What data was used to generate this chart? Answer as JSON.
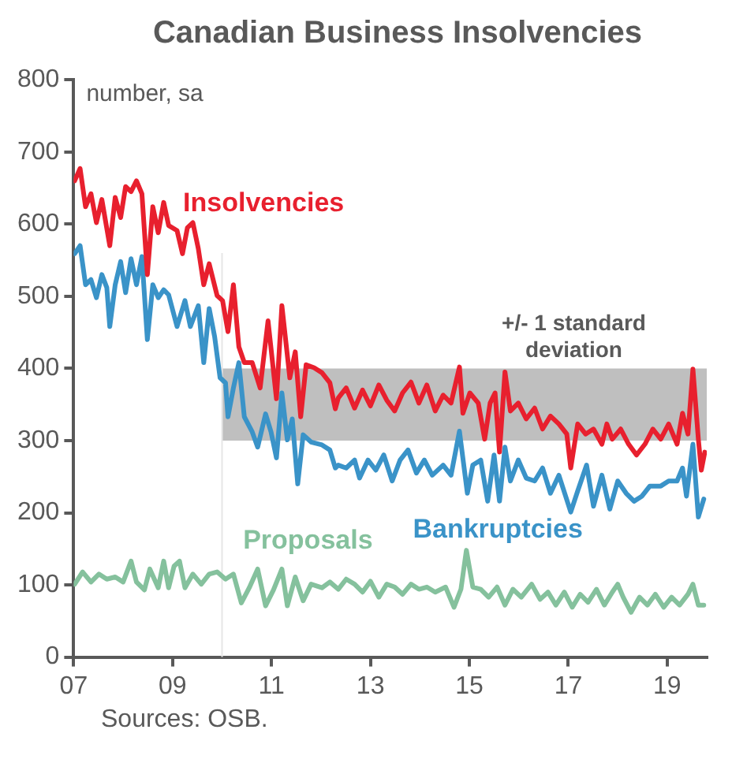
{
  "chart_data": {
    "type": "line",
    "title": "Canadian Business Insolvencies",
    "ylabel": "number, sa",
    "xlim": [
      2007,
      2019.8
    ],
    "xticks": [
      {
        "value": 2007,
        "label": "07"
      },
      {
        "value": 2009,
        "label": "09"
      },
      {
        "value": 2011,
        "label": "11"
      },
      {
        "value": 2013,
        "label": "13"
      },
      {
        "value": 2015,
        "label": "15"
      },
      {
        "value": 2017,
        "label": "17"
      },
      {
        "value": 2019,
        "label": "19"
      }
    ],
    "ylim": [
      0,
      800
    ],
    "yticks": [
      0,
      100,
      200,
      300,
      400,
      500,
      600,
      700,
      800
    ],
    "grid": false,
    "legend": false,
    "bands": [
      {
        "axis": "y",
        "from": 300,
        "to": 400,
        "label": "+/- 1 standard deviation",
        "color": "#bfbfbf"
      }
    ],
    "ref_lines": [
      {
        "axis": "x",
        "value": 2010,
        "color": "#e6e6e6"
      }
    ],
    "annotations": [
      "Sources: OSB."
    ],
    "series": [
      {
        "name": "Insolvencies",
        "color": "#e8202e",
        "x": [
          2007.02,
          2007.13,
          2007.24,
          2007.35,
          2007.46,
          2007.57,
          2007.73,
          2007.84,
          2007.95,
          2008.05,
          2008.16,
          2008.27,
          2008.38,
          2008.49,
          2008.6,
          2008.71,
          2008.82,
          2008.92,
          2009.09,
          2009.2,
          2009.3,
          2009.41,
          2009.52,
          2009.63,
          2009.74,
          2009.9,
          2010.01,
          2010.12,
          2010.23,
          2010.34,
          2010.45,
          2010.61,
          2010.77,
          2010.93,
          2011.1,
          2011.21,
          2011.37,
          2011.48,
          2011.59,
          2011.7,
          2011.86,
          2012.02,
          2012.18,
          2012.29,
          2012.35,
          2012.51,
          2012.68,
          2012.84,
          2013.0,
          2013.17,
          2013.33,
          2013.49,
          2013.65,
          2013.82,
          2013.98,
          2014.14,
          2014.31,
          2014.47,
          2014.63,
          2014.8,
          2014.87,
          2015.01,
          2015.18,
          2015.31,
          2015.42,
          2015.52,
          2015.61,
          2015.72,
          2015.83,
          2015.99,
          2016.15,
          2016.32,
          2016.48,
          2016.64,
          2016.81,
          2016.97,
          2017.05,
          2017.19,
          2017.35,
          2017.51,
          2017.68,
          2017.78,
          2017.89,
          2018.06,
          2018.22,
          2018.38,
          2018.55,
          2018.71,
          2018.87,
          2019.03,
          2019.2,
          2019.31,
          2019.42,
          2019.52,
          2019.63,
          2019.69,
          2019.76
        ],
        "values": [
          660,
          677,
          624,
          642,
          602,
          634,
          570,
          637,
          609,
          652,
          645,
          660,
          642,
          530,
          624,
          588,
          630,
          598,
          591,
          559,
          595,
          602,
          566,
          516,
          545,
          501,
          494,
          451,
          516,
          430,
          408,
          408,
          373,
          466,
          358,
          487,
          387,
          423,
          333,
          405,
          401,
          394,
          380,
          344,
          359,
          373,
          345,
          370,
          348,
          377,
          356,
          341,
          366,
          381,
          352,
          377,
          341,
          363,
          352,
          402,
          338,
          366,
          352,
          302,
          352,
          366,
          284,
          395,
          341,
          352,
          330,
          345,
          316,
          334,
          323,
          309,
          262,
          323,
          309,
          316,
          295,
          323,
          302,
          316,
          295,
          280,
          295,
          316,
          302,
          323,
          295,
          338,
          309,
          399,
          302,
          259,
          284
        ]
      },
      {
        "name": "Bankruptcies",
        "color": "#3a93c8",
        "x": [
          2007.02,
          2007.13,
          2007.24,
          2007.35,
          2007.46,
          2007.57,
          2007.67,
          2007.73,
          2007.84,
          2007.95,
          2008.05,
          2008.16,
          2008.27,
          2008.38,
          2008.49,
          2008.6,
          2008.71,
          2008.82,
          2008.92,
          2009.09,
          2009.25,
          2009.36,
          2009.52,
          2009.63,
          2009.74,
          2009.85,
          2009.96,
          2010.07,
          2010.12,
          2010.23,
          2010.34,
          2010.45,
          2010.61,
          2010.72,
          2010.88,
          2010.99,
          2011.1,
          2011.21,
          2011.32,
          2011.42,
          2011.53,
          2011.64,
          2011.8,
          2012.02,
          2012.18,
          2012.29,
          2012.35,
          2012.51,
          2012.68,
          2012.78,
          2012.95,
          2013.11,
          2013.27,
          2013.44,
          2013.6,
          2013.76,
          2013.93,
          2014.09,
          2014.25,
          2014.47,
          2014.63,
          2014.8,
          2014.96,
          2015.07,
          2015.23,
          2015.37,
          2015.5,
          2015.61,
          2015.72,
          2015.83,
          2015.99,
          2016.15,
          2016.32,
          2016.48,
          2016.64,
          2016.81,
          2017.05,
          2017.19,
          2017.37,
          2017.51,
          2017.68,
          2017.84,
          2018.0,
          2018.17,
          2018.33,
          2018.49,
          2018.65,
          2018.87,
          2019.03,
          2019.2,
          2019.31,
          2019.39,
          2019.52,
          2019.63,
          2019.74
        ],
        "values": [
          559,
          570,
          516,
          523,
          498,
          530,
          512,
          458,
          516,
          548,
          505,
          552,
          516,
          555,
          440,
          516,
          498,
          509,
          502,
          458,
          494,
          458,
          487,
          408,
          483,
          444,
          387,
          380,
          333,
          373,
          408,
          333,
          312,
          291,
          337,
          312,
          276,
          366,
          301,
          330,
          240,
          308,
          298,
          294,
          287,
          262,
          266,
          262,
          273,
          248,
          273,
          259,
          280,
          244,
          273,
          287,
          255,
          273,
          252,
          266,
          252,
          313,
          227,
          266,
          273,
          216,
          280,
          216,
          291,
          244,
          273,
          248,
          244,
          262,
          227,
          252,
          201,
          230,
          266,
          209,
          252,
          205,
          244,
          227,
          216,
          223,
          237,
          237,
          244,
          244,
          262,
          223,
          295,
          194,
          219
        ]
      },
      {
        "name": "Proposals",
        "color": "#85c19d",
        "x": [
          2007.02,
          2007.18,
          2007.35,
          2007.51,
          2007.67,
          2007.84,
          2008.0,
          2008.16,
          2008.27,
          2008.43,
          2008.54,
          2008.71,
          2008.82,
          2008.92,
          2009.03,
          2009.14,
          2009.25,
          2009.41,
          2009.58,
          2009.74,
          2009.9,
          2010.07,
          2010.23,
          2010.39,
          2010.55,
          2010.72,
          2010.88,
          2011.04,
          2011.21,
          2011.32,
          2011.48,
          2011.64,
          2011.8,
          2012.02,
          2012.18,
          2012.35,
          2012.51,
          2012.68,
          2012.84,
          2013.0,
          2013.17,
          2013.33,
          2013.49,
          2013.65,
          2013.82,
          2013.98,
          2014.14,
          2014.31,
          2014.52,
          2014.69,
          2014.83,
          2014.94,
          2015.07,
          2015.23,
          2015.39,
          2015.56,
          2015.72,
          2015.88,
          2016.05,
          2016.26,
          2016.43,
          2016.59,
          2016.75,
          2016.92,
          2017.08,
          2017.24,
          2017.4,
          2017.57,
          2017.73,
          2017.89,
          2018.0,
          2018.11,
          2018.27,
          2018.44,
          2018.6,
          2018.76,
          2018.93,
          2019.09,
          2019.25,
          2019.42,
          2019.52,
          2019.63,
          2019.74
        ],
        "values": [
          101,
          118,
          104,
          115,
          108,
          111,
          104,
          133,
          104,
          93,
          122,
          96,
          133,
          96,
          126,
          133,
          96,
          115,
          101,
          115,
          118,
          108,
          115,
          75,
          96,
          122,
          71,
          93,
          122,
          71,
          111,
          78,
          101,
          96,
          104,
          94,
          108,
          101,
          90,
          105,
          83,
          101,
          97,
          87,
          101,
          94,
          97,
          90,
          97,
          69,
          94,
          148,
          97,
          94,
          83,
          97,
          72,
          94,
          83,
          101,
          80,
          90,
          72,
          90,
          69,
          87,
          76,
          94,
          72,
          90,
          101,
          83,
          62,
          83,
          72,
          87,
          69,
          83,
          72,
          87,
          101,
          72,
          72
        ]
      }
    ]
  }
}
